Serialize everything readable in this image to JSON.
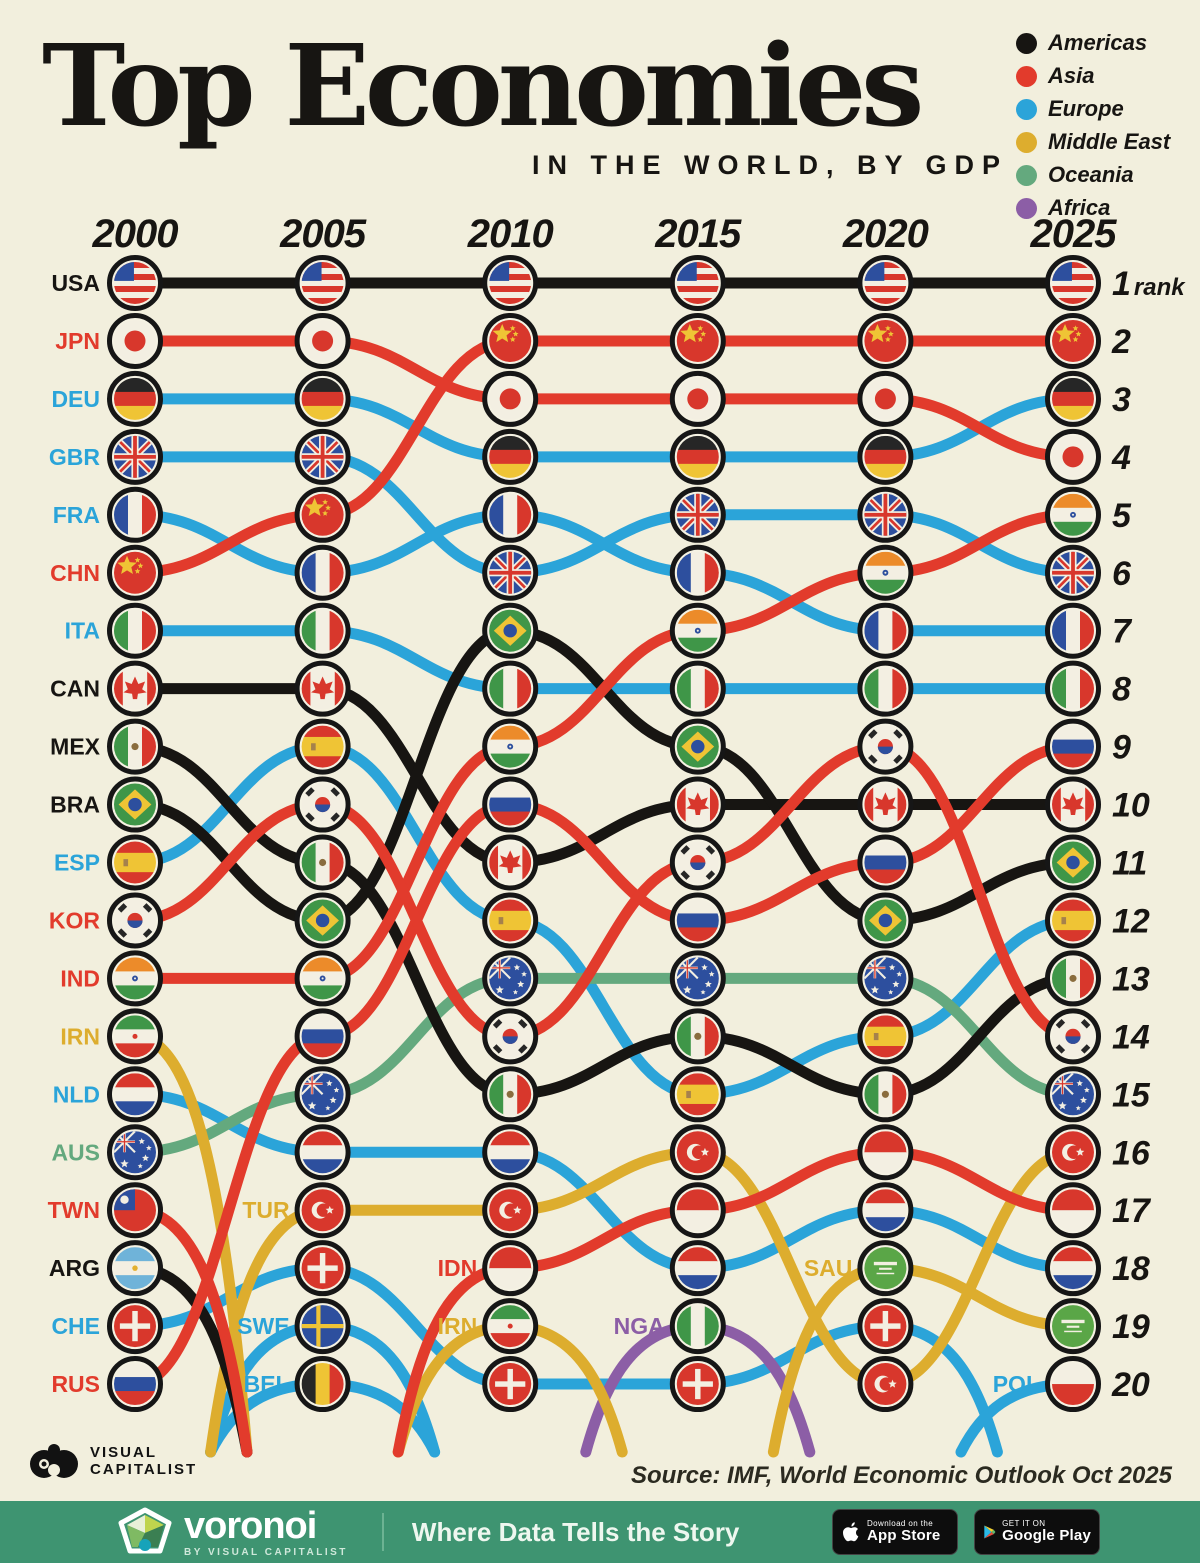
{
  "title": "Top Economies",
  "subtitle": "IN THE WORLD, BY GDP",
  "rank_suffix": "rank",
  "source": "Source: IMF, World Economic Outlook Oct 2025",
  "legend": [
    {
      "label": "Americas",
      "color": "#171512"
    },
    {
      "label": "Asia",
      "color": "#e23b2c"
    },
    {
      "label": "Europe",
      "color": "#2ba4d9"
    },
    {
      "label": "Middle East",
      "color": "#ddad2e"
    },
    {
      "label": "Oceania",
      "color": "#64a97e"
    },
    {
      "label": "Africa",
      "color": "#8c5ea6"
    }
  ],
  "regions": {
    "Americas": "#171512",
    "Asia": "#e23b2c",
    "Europe": "#2ba4d9",
    "Middle East": "#ddad2e",
    "Oceania": "#64a97e",
    "Africa": "#8c5ea6"
  },
  "chart_data": {
    "type": "bump",
    "title": "Top Economies in the World, by GDP",
    "x": [
      2000,
      2005,
      2010,
      2015,
      2020,
      2025
    ],
    "ylabel": "rank",
    "ylim": [
      1,
      20
    ],
    "series": [
      {
        "code": "USA",
        "region": "Americas",
        "ranks": [
          1,
          1,
          1,
          1,
          1,
          1
        ]
      },
      {
        "code": "CHN",
        "region": "Asia",
        "ranks": [
          6,
          5,
          2,
          2,
          2,
          2
        ]
      },
      {
        "code": "JPN",
        "region": "Asia",
        "ranks": [
          2,
          2,
          3,
          3,
          3,
          4
        ]
      },
      {
        "code": "DEU",
        "region": "Europe",
        "ranks": [
          3,
          3,
          4,
          4,
          4,
          3
        ]
      },
      {
        "code": "GBR",
        "region": "Europe",
        "ranks": [
          4,
          4,
          6,
          5,
          5,
          6
        ]
      },
      {
        "code": "FRA",
        "region": "Europe",
        "ranks": [
          5,
          6,
          5,
          6,
          7,
          7
        ]
      },
      {
        "code": "IND",
        "region": "Asia",
        "ranks": [
          13,
          13,
          9,
          7,
          6,
          5
        ]
      },
      {
        "code": "ITA",
        "region": "Europe",
        "ranks": [
          7,
          7,
          8,
          8,
          8,
          8
        ]
      },
      {
        "code": "CAN",
        "region": "Americas",
        "ranks": [
          8,
          8,
          11,
          10,
          10,
          10
        ]
      },
      {
        "code": "BRA",
        "region": "Americas",
        "ranks": [
          10,
          12,
          7,
          9,
          12,
          11
        ]
      },
      {
        "code": "RUS",
        "region": "Asia",
        "ranks": [
          20,
          14,
          10,
          12,
          11,
          9
        ]
      },
      {
        "code": "KOR",
        "region": "Asia",
        "ranks": [
          12,
          10,
          14,
          11,
          9,
          14
        ]
      },
      {
        "code": "MEX",
        "region": "Americas",
        "ranks": [
          9,
          11,
          15,
          14,
          15,
          13
        ]
      },
      {
        "code": "ESP",
        "region": "Europe",
        "ranks": [
          11,
          9,
          12,
          15,
          14,
          12
        ]
      },
      {
        "code": "AUS",
        "region": "Oceania",
        "ranks": [
          16,
          15,
          13,
          13,
          13,
          15
        ]
      },
      {
        "code": "NLD",
        "region": "Europe",
        "ranks": [
          15,
          16,
          16,
          18,
          17,
          18
        ]
      },
      {
        "code": "TUR",
        "region": "Middle East",
        "ranks": [
          null,
          17,
          17,
          16,
          20,
          16
        ]
      },
      {
        "code": "CHE",
        "region": "Europe",
        "ranks": [
          19,
          18,
          20,
          20,
          19,
          null
        ]
      },
      {
        "code": "IDN",
        "region": "Asia",
        "ranks": [
          null,
          null,
          18,
          17,
          16,
          17
        ]
      },
      {
        "code": "SAU",
        "region": "Middle East",
        "ranks": [
          null,
          null,
          null,
          null,
          18,
          19
        ]
      },
      {
        "code": "IRN",
        "region": "Middle East",
        "ranks": [
          14,
          null,
          19,
          null,
          null,
          null
        ]
      },
      {
        "code": "TWN",
        "region": "Asia",
        "ranks": [
          17,
          null,
          null,
          null,
          null,
          null
        ]
      },
      {
        "code": "ARG",
        "region": "Americas",
        "ranks": [
          18,
          null,
          null,
          null,
          null,
          null
        ]
      },
      {
        "code": "SWE",
        "region": "Europe",
        "ranks": [
          null,
          19,
          null,
          null,
          null,
          null
        ]
      },
      {
        "code": "BEL",
        "region": "Europe",
        "ranks": [
          null,
          20,
          null,
          null,
          null,
          null
        ]
      },
      {
        "code": "NGA",
        "region": "Africa",
        "ranks": [
          null,
          null,
          null,
          19,
          null,
          null
        ]
      },
      {
        "code": "POL",
        "region": "Europe",
        "ranks": [
          null,
          null,
          null,
          null,
          null,
          20
        ]
      }
    ]
  },
  "flags": {
    "USA": [
      [
        "bandsH",
        [
          "#d8372c",
          "#f3efe2",
          "#d8372c",
          "#f3efe2",
          "#d8372c",
          "#f3efe2",
          "#d8372c"
        ]
      ],
      [
        "rect",
        -1,
        -1,
        0.95,
        0.9,
        "#2d4f9e"
      ]
    ],
    "JPN": [
      [
        "fill",
        "#f3efe2"
      ],
      [
        "circle",
        0,
        0,
        0.5,
        "#d8372c"
      ]
    ],
    "DEU": [
      [
        "bandsH",
        [
          "#262626",
          "#d8372c",
          "#efc435"
        ]
      ]
    ],
    "GBR": [
      [
        "fill",
        "#2d4f9e"
      ],
      [
        "diagx",
        "#f3efe2",
        0.3
      ],
      [
        "diagx",
        "#d8372c",
        0.13
      ],
      [
        "cross",
        "#f3efe2",
        0.34,
        0,
        0
      ],
      [
        "cross",
        "#d8372c",
        0.18,
        0,
        0
      ]
    ],
    "FRA": [
      [
        "bandsV",
        [
          "#2d4f9e",
          "#f3efe2",
          "#d8372c"
        ]
      ]
    ],
    "CHN": [
      [
        "fill",
        "#d8372c"
      ],
      [
        "star",
        -0.38,
        -0.33,
        0.3,
        "#efc435"
      ],
      [
        "star",
        0.12,
        -0.6,
        0.09,
        "#efc435"
      ],
      [
        "star",
        0.26,
        -0.33,
        0.09,
        "#efc435"
      ],
      [
        "star",
        0.12,
        -0.07,
        0.09,
        "#efc435"
      ]
    ],
    "ITA": [
      [
        "bandsV",
        [
          "#3f9648",
          "#f3efe2",
          "#d8372c"
        ]
      ]
    ],
    "CAN": [
      [
        "fill",
        "#f3efe2"
      ],
      [
        "rect",
        -1,
        -1,
        0.42,
        2,
        "#d8372c"
      ],
      [
        "rect",
        0.58,
        -1,
        0.42,
        2,
        "#d8372c"
      ],
      [
        "leaf",
        "#d8372c"
      ]
    ],
    "MEX": [
      [
        "bandsV",
        [
          "#3f9648",
          "#f3efe2",
          "#d8372c"
        ]
      ],
      [
        "circle",
        0,
        0,
        0.17,
        "#8a6d3e"
      ]
    ],
    "BRA": [
      [
        "fill",
        "#3f9648"
      ],
      [
        "poly",
        [
          [
            0,
            -0.72
          ],
          [
            0.78,
            0
          ],
          [
            0,
            0.72
          ],
          [
            -0.78,
            0
          ]
        ],
        "#efc435"
      ],
      [
        "circle",
        0,
        0,
        0.32,
        "#2d4f9e"
      ]
    ],
    "ESP": [
      [
        "bandsH",
        [
          "#d8372c",
          "#efc435",
          "#d8372c"
        ],
        [
          0.27,
          0.46,
          0.27
        ]
      ],
      [
        "rect",
        -0.55,
        -0.16,
        0.22,
        0.34,
        "#a5814c"
      ]
    ],
    "KOR": [
      [
        "fill",
        "#f3efe2"
      ],
      [
        "taegeuk",
        0.36
      ],
      [
        "korbars",
        "#262626"
      ]
    ],
    "IND": [
      [
        "bandsH",
        [
          "#ec8b2a",
          "#f3efe2",
          "#3f9648"
        ]
      ],
      [
        "circle",
        0,
        0,
        0.14,
        "#2d4f9e"
      ],
      [
        "circle",
        0,
        0,
        0.05,
        "#f3efe2"
      ]
    ],
    "IRN": [
      [
        "bandsH",
        [
          "#3f9648",
          "#f3efe2",
          "#d8372c"
        ]
      ],
      [
        "circle",
        0,
        0,
        0.12,
        "#d8372c"
      ]
    ],
    "NLD": [
      [
        "bandsH",
        [
          "#d8372c",
          "#f3efe2",
          "#2d4f9e"
        ]
      ]
    ],
    "AUS": [
      [
        "fill",
        "#2d4f9e"
      ],
      [
        "minijack"
      ],
      [
        "star",
        0.5,
        0.28,
        0.11,
        "#f3efe2"
      ],
      [
        "star",
        0.32,
        -0.52,
        0.1,
        "#f3efe2"
      ],
      [
        "star",
        0.66,
        -0.2,
        0.09,
        "#f3efe2"
      ],
      [
        "star",
        0.25,
        0.66,
        0.08,
        "#f3efe2"
      ],
      [
        "star",
        -0.5,
        0.55,
        0.13,
        "#f3efe2"
      ]
    ],
    "TWN": [
      [
        "fill",
        "#d8372c"
      ],
      [
        "rect",
        -1,
        -1,
        1,
        1,
        "#2d4f9e"
      ],
      [
        "circle",
        -0.5,
        -0.5,
        0.2,
        "#f3efe2"
      ]
    ],
    "ARG": [
      [
        "bandsH",
        [
          "#6fb3d9",
          "#f3efe2",
          "#6fb3d9"
        ]
      ],
      [
        "circle",
        0,
        0,
        0.13,
        "#e3b02f"
      ]
    ],
    "CHE": [
      [
        "fill",
        "#d8372c"
      ],
      [
        "cross",
        "#f3efe2",
        0.26,
        0,
        0.72
      ]
    ],
    "RUS": [
      [
        "bandsH",
        [
          "#f3efe2",
          "#2d4f9e",
          "#d8372c"
        ]
      ]
    ],
    "TUR": [
      [
        "fill",
        "#d8372c"
      ],
      [
        "circle",
        -0.12,
        0,
        0.4,
        "#f3efe2"
      ],
      [
        "circle",
        0.04,
        0,
        0.32,
        "#d8372c"
      ],
      [
        "star",
        0.34,
        0,
        0.13,
        "#f3efe2"
      ]
    ],
    "SWE": [
      [
        "fill",
        "#2d4f9e"
      ],
      [
        "cross",
        "#efc435",
        0.2,
        -0.2,
        0
      ]
    ],
    "BEL": [
      [
        "bandsV",
        [
          "#262626",
          "#efc435",
          "#d8372c"
        ]
      ]
    ],
    "IDN": [
      [
        "bandsH",
        [
          "#d8372c",
          "#f3efe2"
        ]
      ]
    ],
    "SAU": [
      [
        "fill",
        "#5aa647"
      ],
      [
        "rect",
        -0.55,
        -0.3,
        1.1,
        0.16,
        "#f3efe2"
      ],
      [
        "rect",
        -0.3,
        -0.02,
        0.6,
        0.1,
        "#f3efe2"
      ],
      [
        "rect",
        -0.42,
        0.22,
        0.84,
        0.07,
        "#f3efe2"
      ]
    ],
    "NGA": [
      [
        "bandsV",
        [
          "#3f9648",
          "#f3efe2",
          "#3f9648"
        ]
      ]
    ],
    "POL": [
      [
        "bandsH",
        [
          "#f3efe2",
          "#d8372c"
        ]
      ]
    ],
    "VC_NOTE": null
  },
  "footer": {
    "visual_capitalist_line1": "VISUAL",
    "visual_capitalist_line2": "CAPITALIST",
    "voronoi_name": "voronoi",
    "voronoi_by": "BY VISUAL CAPITALIST",
    "tagline": "Where Data Tells the Story",
    "app_store": {
      "line1": "Download on the",
      "line2": "App Store"
    },
    "google_play": {
      "line1": "GET IT ON",
      "line2": "Google Play"
    }
  }
}
